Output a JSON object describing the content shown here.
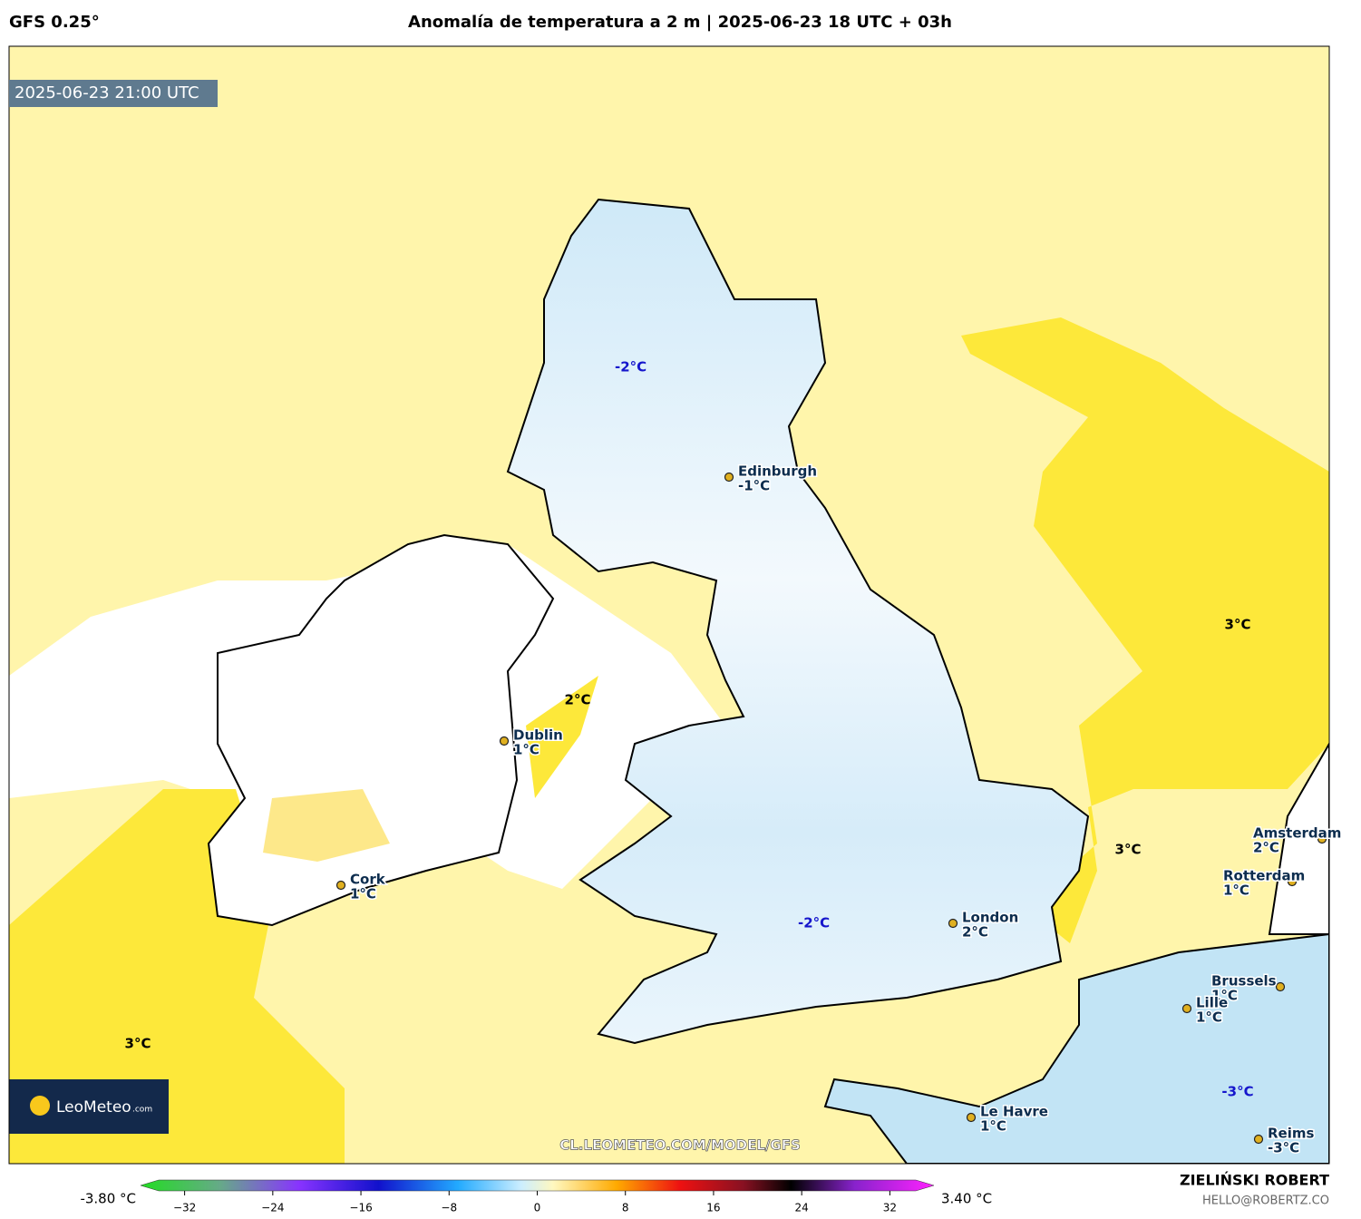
{
  "header": {
    "model": "GFS 0.25°",
    "title": "Anomalía de temperatura a 2 m | 2025-06-23 18 UTC + 03h"
  },
  "timestamp": "2025-06-23 21:00 UTC",
  "cities": [
    {
      "name": "Edinburgh",
      "temp": "-1°C"
    },
    {
      "name": "Dublin",
      "temp": "1°C"
    },
    {
      "name": "Cork",
      "temp": "1°C"
    },
    {
      "name": "London",
      "temp": "2°C"
    },
    {
      "name": "Amsterdam",
      "temp": "2°C"
    },
    {
      "name": "Rotterdam",
      "temp": "1°C"
    },
    {
      "name": "Brussels",
      "temp": "1°C"
    },
    {
      "name": "Lille",
      "temp": "1°C"
    },
    {
      "name": "Le Havre",
      "temp": "1°C"
    },
    {
      "name": "Reims",
      "temp": "-3°C"
    }
  ],
  "region_labels": [
    "-2°C",
    "-2°C",
    "2°C",
    "3°C",
    "3°C",
    "3°C",
    "-3°C"
  ],
  "logo": {
    "name": "LeoMeteo",
    "suffix": ".com"
  },
  "url": "CL.LEOMETEO.COM/MODEL/GFS",
  "colorbar": {
    "min_label": "-3.80 °C",
    "max_label": "3.40 °C",
    "range": [
      -36,
      36
    ],
    "ticks": [
      {
        "value": -32,
        "label": "−32"
      },
      {
        "value": -24,
        "label": "−24"
      },
      {
        "value": -16,
        "label": "−16"
      },
      {
        "value": -8,
        "label": "−8"
      },
      0,
      8,
      16,
      24,
      32
    ]
  },
  "author": {
    "name": "ZIELIŃSKI ROBERT",
    "email": "HELLO@ROBERTZ.CO"
  }
}
